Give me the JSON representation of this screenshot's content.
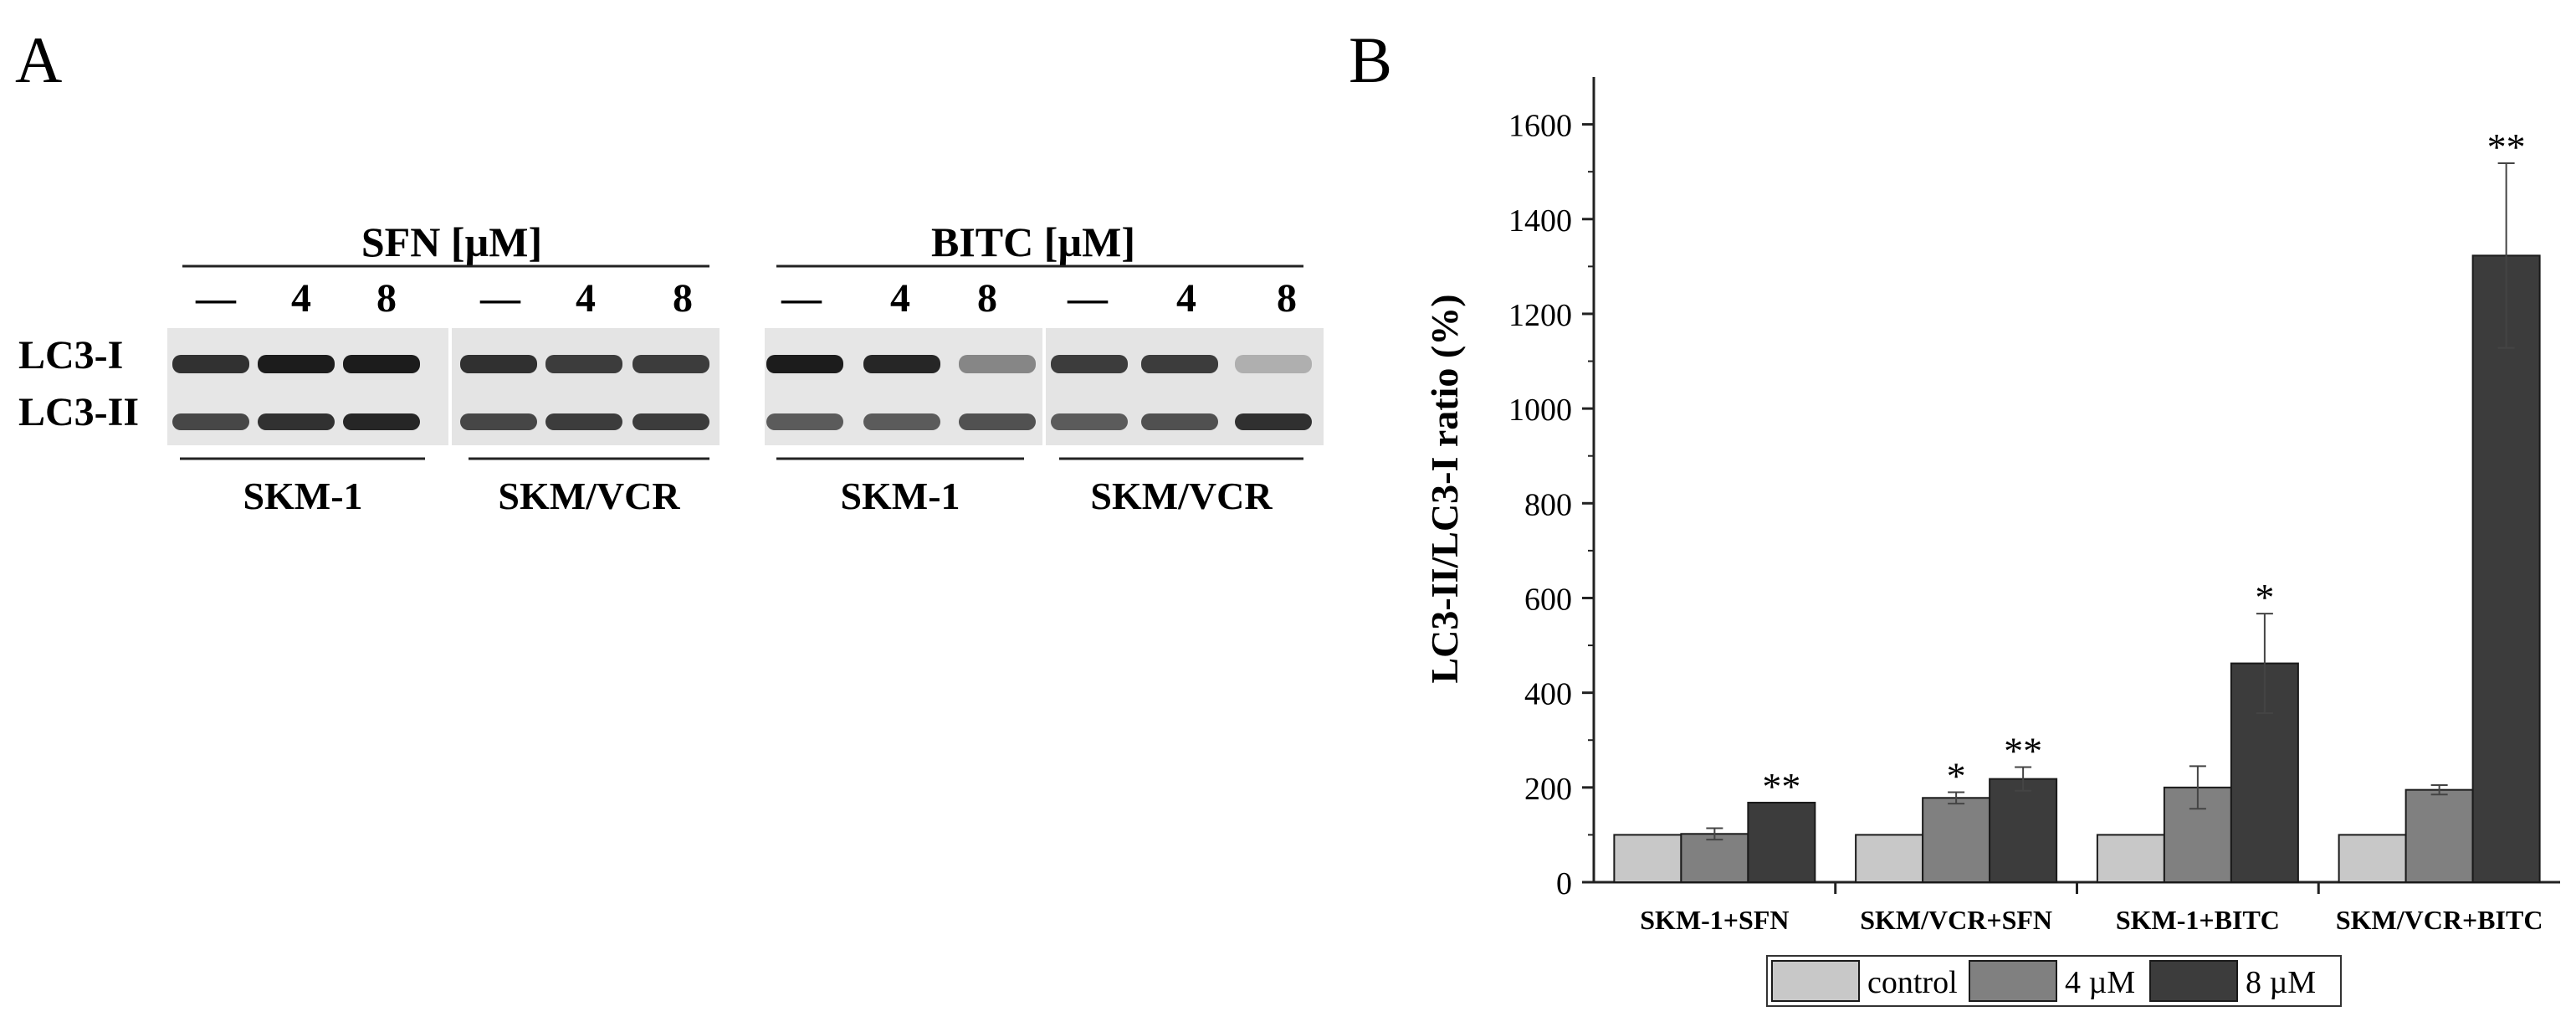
{
  "panel_a": {
    "label": "A",
    "treatments": [
      {
        "name": "SFN [µM]"
      },
      {
        "name": "BITC [µM]"
      }
    ],
    "concentrations": [
      "—",
      "4",
      "8",
      "—",
      "4",
      "8"
    ],
    "bands": [
      "LC3-I",
      "LC3-II"
    ],
    "cell_lines": [
      "SKM-1",
      "SKM/VCR"
    ]
  },
  "panel_b": {
    "label": "B"
  },
  "chart_data": {
    "type": "bar",
    "title": "",
    "xlabel": "",
    "ylabel": "LC3-II/LC3-I ratio (%)",
    "ylim": [
      0,
      1700
    ],
    "yticks": [
      0,
      200,
      400,
      600,
      800,
      1000,
      1200,
      1400,
      1600
    ],
    "categories": [
      "SKM-1+SFN",
      "SKM/VCR+SFN",
      "SKM-1+BITC",
      "SKM/VCR+BITC"
    ],
    "series": [
      {
        "name": "control",
        "color": "#c8c8c8",
        "values": [
          100,
          100,
          100,
          100
        ],
        "errors": [
          0,
          0,
          0,
          0
        ],
        "sig": [
          "",
          "",
          "",
          ""
        ]
      },
      {
        "name": "4 µM",
        "color": "#808080",
        "values": [
          102,
          178,
          200,
          195
        ],
        "errors": [
          12,
          12,
          45,
          10
        ],
        "sig": [
          "",
          "*",
          "",
          ""
        ]
      },
      {
        "name": "8 µM",
        "color": "#3c3c3c",
        "values": [
          168,
          218,
          462,
          1323
        ],
        "errors": [
          0,
          25,
          105,
          195
        ],
        "sig": [
          "**",
          "**",
          "*",
          "**"
        ]
      }
    ],
    "legend": "bottom",
    "grid": false
  }
}
